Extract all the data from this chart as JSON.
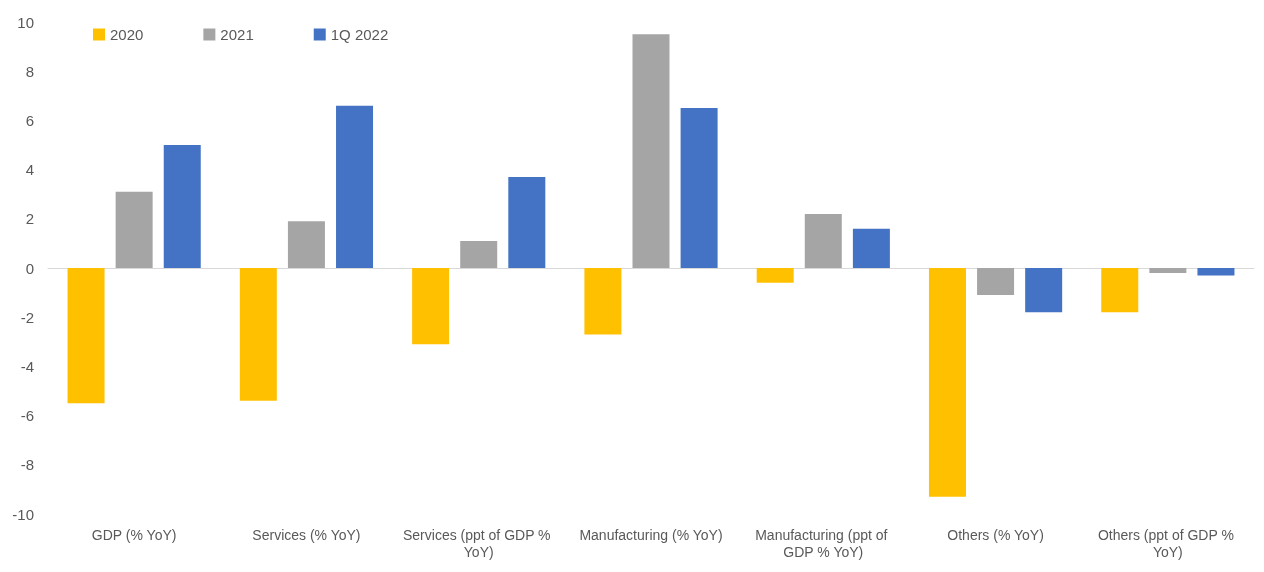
{
  "chart_data": {
    "type": "bar",
    "categories": [
      "GDP (% YoY)",
      "Services (% YoY)",
      "Services (ppt of GDP % YoY)",
      "Manufacturing (% YoY)",
      "Manufacturing (ppt of GDP % YoY)",
      "Others (% YoY)",
      "Others (ppt of GDP % YoY)"
    ],
    "series": [
      {
        "name": "2020",
        "color": "#ffc000",
        "values": [
          -5.5,
          -5.4,
          -3.1,
          -2.7,
          -0.6,
          -9.3,
          -1.8
        ]
      },
      {
        "name": "2021",
        "color": "#a5a5a5",
        "values": [
          3.1,
          1.9,
          1.1,
          9.5,
          2.2,
          -1.1,
          -0.2
        ]
      },
      {
        "name": "1Q 2022",
        "color": "#4472c4",
        "values": [
          5.0,
          6.6,
          3.7,
          6.5,
          1.6,
          -1.8,
          -0.3
        ]
      }
    ],
    "ylim": [
      -10,
      10
    ],
    "yticks": [
      -10,
      -8,
      -6,
      -4,
      -2,
      0,
      2,
      4,
      6,
      8,
      10
    ],
    "legend": "top left"
  }
}
